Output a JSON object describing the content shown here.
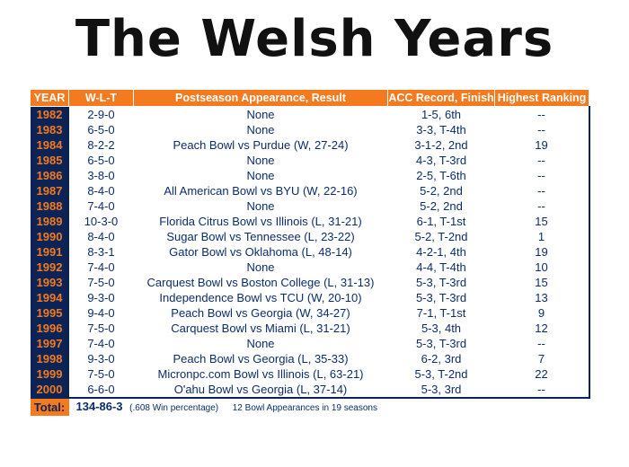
{
  "title": "The Welsh Years",
  "headers": [
    "YEAR",
    "W-L-T",
    "Postseason Appearance, Result",
    "ACC Record, Finish",
    "Highest Ranking"
  ],
  "rows": [
    {
      "year": "1982",
      "wlt": "2-9-0",
      "post": "None",
      "acc": "1-5, 6th",
      "rank": "--"
    },
    {
      "year": "1983",
      "wlt": "6-5-0",
      "post": "None",
      "acc": "3-3, T-4th",
      "rank": "--"
    },
    {
      "year": "1984",
      "wlt": "8-2-2",
      "post": "Peach Bowl vs Purdue (W, 27-24)",
      "acc": "3-1-2, 2nd",
      "rank": "19"
    },
    {
      "year": "1985",
      "wlt": "6-5-0",
      "post": "None",
      "acc": "4-3, T-3rd",
      "rank": "--"
    },
    {
      "year": "1986",
      "wlt": "3-8-0",
      "post": "None",
      "acc": "2-5, T-6th",
      "rank": "--"
    },
    {
      "year": "1987",
      "wlt": "8-4-0",
      "post": "All American Bowl vs BYU (W, 22-16)",
      "acc": "5-2, 2nd",
      "rank": "--"
    },
    {
      "year": "1988",
      "wlt": "7-4-0",
      "post": "None",
      "acc": "5-2, 2nd",
      "rank": "--"
    },
    {
      "year": "1989",
      "wlt": "10-3-0",
      "post": "Florida Citrus Bowl vs Illinois (L, 31-21)",
      "acc": "6-1, T-1st",
      "rank": "15"
    },
    {
      "year": "1990",
      "wlt": "8-4-0",
      "post": "Sugar Bowl vs Tennessee (L, 23-22)",
      "acc": "5-2, T-2nd",
      "rank": "1"
    },
    {
      "year": "1991",
      "wlt": "8-3-1",
      "post": "Gator Bowl vs Oklahoma (L, 48-14)",
      "acc": "4-2-1, 4th",
      "rank": "19"
    },
    {
      "year": "1992",
      "wlt": "7-4-0",
      "post": "None",
      "acc": "4-4, T-4th",
      "rank": "10"
    },
    {
      "year": "1993",
      "wlt": "7-5-0",
      "post": "Carquest Bowl vs Boston College (L, 31-13)",
      "acc": "5-3, T-3rd",
      "rank": "15"
    },
    {
      "year": "1994",
      "wlt": "9-3-0",
      "post": "Independence Bowl vs TCU (W, 20-10)",
      "acc": "5-3, T-3rd",
      "rank": "13"
    },
    {
      "year": "1995",
      "wlt": "9-4-0",
      "post": "Peach Bowl vs Georgia (W, 34-27)",
      "acc": "7-1, T-1st",
      "rank": "9"
    },
    {
      "year": "1996",
      "wlt": "7-5-0",
      "post": "Carquest Bowl vs Miami (L, 31-21)",
      "acc": "5-3, 4th",
      "rank": "12"
    },
    {
      "year": "1997",
      "wlt": "7-4-0",
      "post": "None",
      "acc": "5-3, T-3rd",
      "rank": "--"
    },
    {
      "year": "1998",
      "wlt": "9-3-0",
      "post": "Peach Bowl vs Georgia (L, 35-33)",
      "acc": "6-2, 3rd",
      "rank": "7"
    },
    {
      "year": "1999",
      "wlt": "7-5-0",
      "post": "Micronpc.com Bowl vs Illinois (L, 63-21)",
      "acc": "5-3, T-2nd",
      "rank": "22"
    },
    {
      "year": "2000",
      "wlt": "6-6-0",
      "post": "O'ahu Bowl vs Georgia (L, 37-14)",
      "acc": "5-3, 3rd",
      "rank": "--"
    }
  ],
  "total": {
    "label": "Total:",
    "record": "134-86-3",
    "pct": "(.608 Win percentage)",
    "bowls": "12 Bowl Appearances in 19 seasons"
  },
  "colors": {
    "navy": "#0c2455",
    "orange": "#f47a20",
    "text": "#0b2d6b"
  }
}
